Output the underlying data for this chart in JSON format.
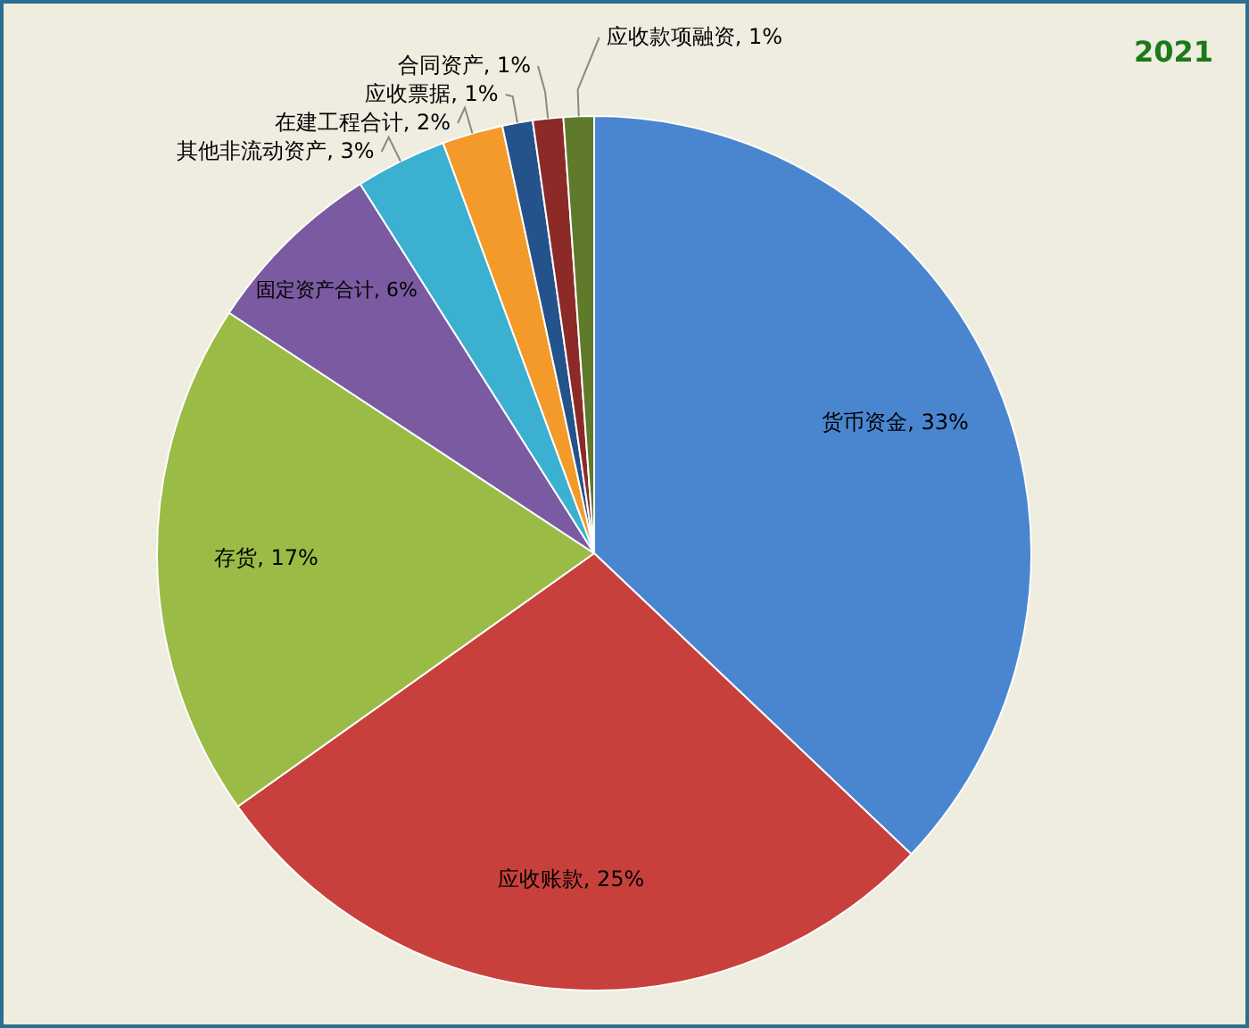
{
  "chart_data": {
    "type": "pie",
    "title": "2021",
    "categories": [
      "货币资金",
      "应收账款",
      "存货",
      "固定资产合计",
      "其他非流动资产",
      "在建工程合计",
      "应收票据",
      "合同资产",
      "应收款项融资"
    ],
    "values": [
      33,
      25,
      17,
      6,
      3,
      2,
      1,
      1,
      1
    ],
    "value_labels": [
      "33%",
      "25%",
      "17%",
      "6%",
      "3%",
      "2%",
      "1%",
      "1%",
      "1%"
    ],
    "colors": [
      "#4a86d0",
      "#c8403c",
      "#9bbb47",
      "#7a5aa0",
      "#3bb0d0",
      "#f39a2b",
      "#24528a",
      "#8c2a28",
      "#5e7a2a"
    ]
  }
}
